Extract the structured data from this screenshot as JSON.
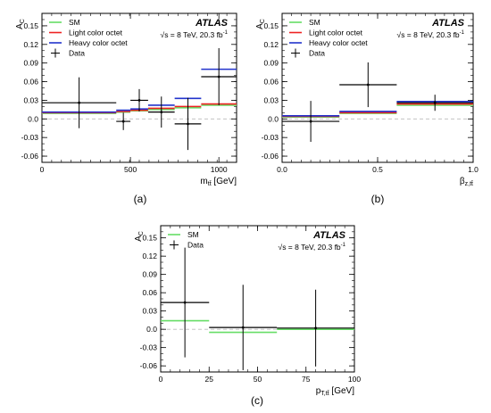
{
  "chart_data": [
    {
      "type": "line",
      "panel_label": "(a)",
      "experiment": "ATLAS",
      "energy_text": "√s = 8 TeV, 20.3 fb",
      "lumi_superscript": "-1",
      "ylabel": "A",
      "ylabel_sub": "C",
      "xlabel": "m",
      "xlabel_sub": "tt̄",
      "xlabel_unit": " [GeV]",
      "xlim": [
        0,
        1100
      ],
      "ylim": [
        -0.07,
        0.17
      ],
      "xticks": [
        0,
        500,
        1000
      ],
      "xtick_labels": [
        "0",
        "500",
        "1000"
      ],
      "yticks": [
        -0.06,
        -0.03,
        0,
        0.03,
        0.06,
        0.09,
        0.12,
        0.15
      ],
      "ytick_labels": [
        "-0.06",
        "-0.03",
        "0.0",
        "0.03",
        "0.06",
        "0.09",
        "0.12",
        "0.15"
      ],
      "legend_position": "top-left",
      "legend": [
        {
          "label": "SM",
          "kind": "line",
          "color": "#66dd66"
        },
        {
          "label": "Light color octet",
          "kind": "line",
          "color": "#ee2222"
        },
        {
          "label": "Heavy color octet",
          "kind": "line",
          "color": "#2233cc"
        },
        {
          "label": "Data",
          "kind": "marker",
          "color": "#000000"
        }
      ],
      "bins": [
        [
          0,
          420
        ],
        [
          420,
          500
        ],
        [
          500,
          600
        ],
        [
          600,
          750
        ],
        [
          750,
          900
        ],
        [
          900,
          1100
        ]
      ],
      "series": [
        {
          "name": "SM",
          "color": "#66dd66",
          "values": [
            0.009,
            0.011,
            0.013,
            0.015,
            0.018,
            0.022
          ]
        },
        {
          "name": "Light color octet",
          "color": "#ee2222",
          "values": [
            0.01,
            0.012,
            0.014,
            0.017,
            0.02,
            0.024
          ]
        },
        {
          "name": "Heavy color octet",
          "color": "#2233cc",
          "values": [
            0.011,
            0.014,
            0.016,
            0.022,
            0.033,
            0.08
          ]
        }
      ],
      "data_points": [
        {
          "x": 210,
          "y": 0.026,
          "err": 0.041
        },
        {
          "x": 460,
          "y": -0.004,
          "err": 0.014
        },
        {
          "x": 550,
          "y": 0.03,
          "err": 0.018
        },
        {
          "x": 675,
          "y": 0.011,
          "err": 0.025
        },
        {
          "x": 825,
          "y": -0.008,
          "err": 0.042
        },
        {
          "x": 1000,
          "y": 0.068,
          "err": 0.046
        }
      ]
    },
    {
      "type": "line",
      "panel_label": "(b)",
      "experiment": "ATLAS",
      "energy_text": "√s = 8 TeV, 20.3 fb",
      "lumi_superscript": "-1",
      "ylabel": "A",
      "ylabel_sub": "C",
      "xlabel": "β",
      "xlabel_sub": "z,tt̄",
      "xlabel_unit": "",
      "xlim": [
        0,
        1.0
      ],
      "ylim": [
        -0.07,
        0.17
      ],
      "xticks": [
        0,
        0.5,
        1.0
      ],
      "xtick_labels": [
        "0.0",
        "0.5",
        "1.0"
      ],
      "yticks": [
        -0.06,
        -0.03,
        0,
        0.03,
        0.06,
        0.09,
        0.12,
        0.15
      ],
      "ytick_labels": [
        "-0.06",
        "-0.03",
        "0.0",
        "0.03",
        "0.06",
        "0.09",
        "0.12",
        "0.15"
      ],
      "legend_position": "top-left",
      "legend": [
        {
          "label": "SM",
          "kind": "line",
          "color": "#66dd66"
        },
        {
          "label": "Light color octet",
          "kind": "line",
          "color": "#ee2222"
        },
        {
          "label": "Heavy color octet",
          "kind": "line",
          "color": "#2233cc"
        },
        {
          "label": "Data",
          "kind": "marker",
          "color": "#000000"
        }
      ],
      "bins": [
        [
          0,
          0.3
        ],
        [
          0.3,
          0.6
        ],
        [
          0.6,
          1.0
        ]
      ],
      "series": [
        {
          "name": "SM",
          "color": "#66dd66",
          "values": [
            0.003,
            0.009,
            0.022
          ]
        },
        {
          "name": "Light color octet",
          "color": "#ee2222",
          "values": [
            0.004,
            0.01,
            0.024
          ]
        },
        {
          "name": "Heavy color octet",
          "color": "#2233cc",
          "values": [
            0.005,
            0.012,
            0.028
          ]
        }
      ],
      "data_points": [
        {
          "x": 0.15,
          "y": -0.004,
          "err": 0.033
        },
        {
          "x": 0.45,
          "y": 0.055,
          "err": 0.036
        },
        {
          "x": 0.8,
          "y": 0.026,
          "err": 0.013
        }
      ]
    },
    {
      "type": "line",
      "panel_label": "(c)",
      "experiment": "ATLAS",
      "energy_text": "√s = 8 TeV, 20.3 fb",
      "lumi_superscript": "-1",
      "ylabel": "A",
      "ylabel_sub": "C",
      "xlabel": "p",
      "xlabel_sub": "T,tt̄",
      "xlabel_unit": " [GeV]",
      "xlim": [
        0,
        100
      ],
      "ylim": [
        -0.07,
        0.17
      ],
      "xticks": [
        0,
        25,
        50,
        75,
        100
      ],
      "xtick_labels": [
        "0",
        "25",
        "50",
        "75",
        "100"
      ],
      "yticks": [
        -0.06,
        -0.03,
        0,
        0.03,
        0.06,
        0.09,
        0.12,
        0.15
      ],
      "ytick_labels": [
        "-0.06",
        "-0.03",
        "0.0",
        "0.03",
        "0.06",
        "0.09",
        "0.12",
        "0.15"
      ],
      "legend_position": "top-left",
      "legend": [
        {
          "label": "SM",
          "kind": "line",
          "color": "#66dd66"
        },
        {
          "label": "Data",
          "kind": "marker",
          "color": "#000000"
        }
      ],
      "bins": [
        [
          0,
          25
        ],
        [
          25,
          60
        ],
        [
          60,
          100
        ]
      ],
      "series": [
        {
          "name": "SM",
          "color": "#66dd66",
          "values": [
            0.014,
            -0.005,
            0.0
          ]
        }
      ],
      "data_points": [
        {
          "x": 12.5,
          "y": 0.044,
          "err": 0.09
        },
        {
          "x": 42.5,
          "y": 0.003,
          "err": 0.07
        },
        {
          "x": 80,
          "y": 0.002,
          "err": 0.063
        }
      ],
      "data_bins": [
        [
          0,
          25
        ],
        [
          25,
          60
        ],
        [
          60,
          100
        ]
      ]
    }
  ]
}
